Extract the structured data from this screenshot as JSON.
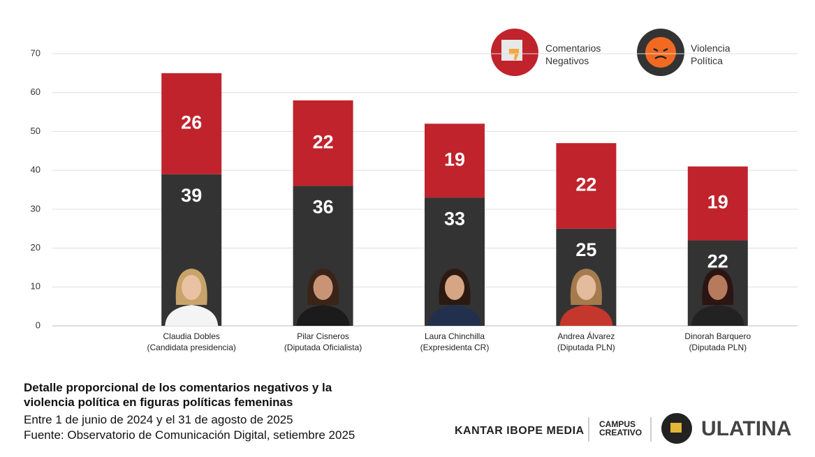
{
  "chart_data": {
    "type": "stacked_bar",
    "title": "Detalle proporcional de los comentarios negativos y la violencia política en figuras políticas femeninas",
    "subtitle": "Entre 1 de junio de 2024 y el 31 de agosto de 2025",
    "source": "Fuente: Observatorio de Comunicación Digital, setiembre 2025",
    "categories": [
      "Claudia Dobles",
      "Pilar Cisneros",
      "Laura Chinchilla",
      "Andrea Álvarez",
      "Dinorah Barquero"
    ],
    "category_roles": [
      "(Candidata presidencia)",
      "(Diputada Oficialista)",
      "(Expresidenta CR)",
      "(Diputada PLN)",
      "(Diputada PLN)"
    ],
    "series": [
      {
        "name": "Violencia Política",
        "color": "#333333",
        "values": [
          39,
          36,
          33,
          25,
          22
        ]
      },
      {
        "name": "Comentarios Negativos",
        "color": "#c0232c",
        "values": [
          26,
          22,
          19,
          22,
          19
        ]
      }
    ],
    "ylim": [
      0,
      70
    ],
    "yticks": [
      0,
      10,
      20,
      30,
      40,
      50,
      60,
      70
    ],
    "grid": true,
    "legend": "top-right",
    "logos": [
      "KANTAR IBOPE MEDIA",
      "CAMPUS CREATIVO",
      "ULATINA"
    ]
  }
}
